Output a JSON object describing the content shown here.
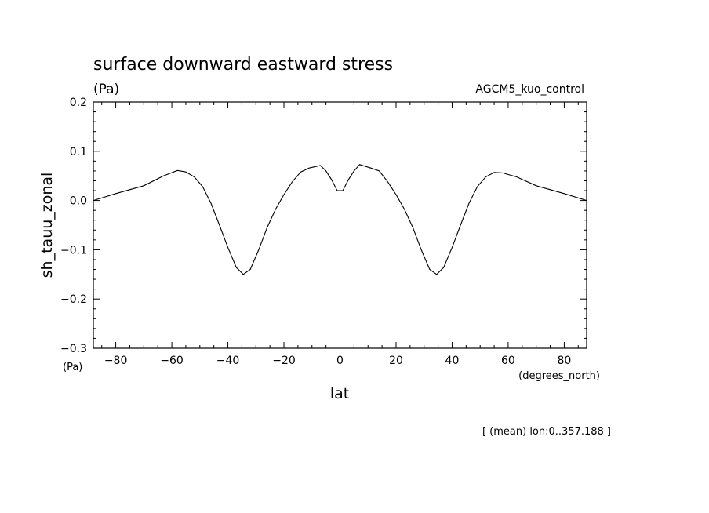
{
  "chart_data": {
    "type": "line",
    "title": "surface downward eastward stress",
    "units": "(Pa)",
    "dataset": "AGCM5_kuo_control",
    "ylabel": "sh_tauu_zonal",
    "ylabel_units": "(Pa)",
    "xlabel": "lat",
    "xlabel_units": "(degrees_north)",
    "footnote": "[ (mean) lon:0..357.188 ]",
    "xlim": [
      -88,
      88
    ],
    "ylim": [
      -0.3,
      0.2
    ],
    "x_ticks": [
      -80,
      -60,
      -40,
      -20,
      0,
      20,
      40,
      60,
      80
    ],
    "x_tick_labels": [
      "−80",
      "−60",
      "−40",
      "−20",
      "0",
      "20",
      "40",
      "60",
      "80"
    ],
    "y_ticks": [
      0.2,
      0.1,
      0.0,
      -0.1,
      -0.2,
      -0.3
    ],
    "y_tick_labels": [
      "0.2",
      "0.1",
      "0.0",
      "−0.1",
      "−0.2",
      "−0.3"
    ],
    "grid": false,
    "line_color": "#000000",
    "series": [
      {
        "x": [
          -88,
          -80,
          -70,
          -63,
          -58,
          -55,
          -52,
          -49,
          -46,
          -43,
          -40,
          -37,
          -34.5,
          -32,
          -29,
          -26,
          -23,
          -20,
          -17,
          -14,
          -11,
          -7,
          -5,
          -3,
          -1,
          1,
          3,
          5,
          7,
          11,
          14,
          17,
          20,
          23,
          26,
          29,
          32,
          34.5,
          37,
          40,
          43,
          46,
          49,
          52,
          55,
          58,
          63,
          70,
          80,
          88
        ],
        "y": [
          0.0,
          0.014,
          0.03,
          0.05,
          0.061,
          0.058,
          0.048,
          0.028,
          -0.006,
          -0.05,
          -0.095,
          -0.136,
          -0.15,
          -0.14,
          -0.1,
          -0.055,
          -0.018,
          0.012,
          0.038,
          0.058,
          0.066,
          0.071,
          0.06,
          0.042,
          0.02,
          0.02,
          0.042,
          0.06,
          0.073,
          0.066,
          0.06,
          0.038,
          0.012,
          -0.018,
          -0.055,
          -0.1,
          -0.14,
          -0.15,
          -0.136,
          -0.095,
          -0.05,
          -0.006,
          0.028,
          0.048,
          0.057,
          0.056,
          0.048,
          0.03,
          0.014,
          0.0
        ]
      }
    ]
  }
}
